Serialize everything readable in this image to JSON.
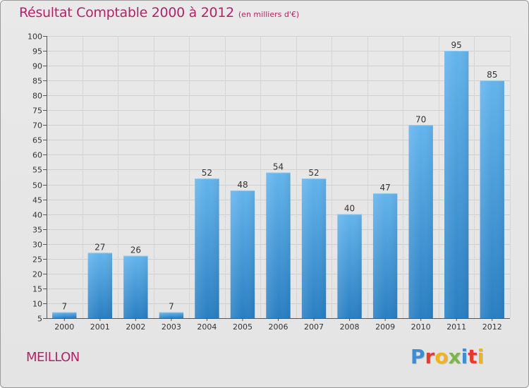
{
  "title": "Résultat Comptable 2000 à 2012",
  "subtitle": "(en milliers d'€)",
  "commune": "MEILLON",
  "logo": {
    "letters": [
      "P",
      "r",
      "o",
      "x",
      "i",
      "t",
      "i"
    ],
    "colors": [
      "#3c8dd6",
      "#e53a2f",
      "#f0b21d",
      "#7ab648",
      "#3c8dd6",
      "#e53a2f",
      "#f0b21d"
    ]
  },
  "colors": {
    "bar_light": "#64b4ec",
    "bar_dark": "#2a7fc2",
    "title": "#b0246a",
    "background": "#e6e6e6"
  },
  "chart_data": {
    "type": "bar",
    "categories": [
      "2000",
      "2001",
      "2002",
      "2003",
      "2004",
      "2005",
      "2006",
      "2007",
      "2008",
      "2009",
      "2010",
      "2011",
      "2012"
    ],
    "values": [
      7,
      27,
      26,
      7,
      52,
      48,
      54,
      52,
      40,
      47,
      70,
      95,
      85
    ],
    "title": "Résultat Comptable 2000 à 2012",
    "xlabel": "",
    "ylabel": "",
    "ylim": [
      5,
      100
    ],
    "yticks": [
      5,
      10,
      15,
      20,
      25,
      30,
      35,
      40,
      45,
      50,
      55,
      60,
      65,
      70,
      75,
      80,
      85,
      90,
      95,
      100
    ],
    "grid": true,
    "legend": "none"
  }
}
